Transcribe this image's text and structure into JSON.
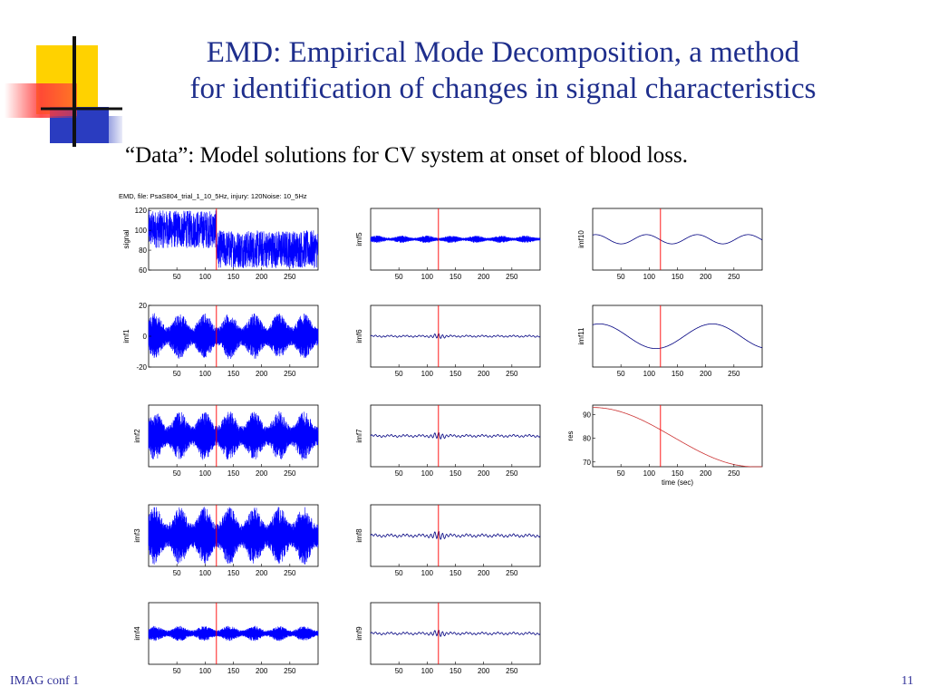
{
  "slide": {
    "title_line1": "EMD: Empirical Mode Decomposition, a method",
    "title_line2": "for identification of changes in signal characteristics",
    "subtitle": "“Data”: Model solutions for CV system at onset of blood loss.",
    "footer_left": "IMAG conf 1",
    "page_number": "11"
  },
  "colors": {
    "title": "#1e2e8c",
    "signal": "#0000ff",
    "marker": "#ff0000",
    "trend": "#cc3333",
    "logo_yellow": "#ffd200",
    "logo_red": "#ff3b3b",
    "logo_blue": "#2a3cc0"
  },
  "chart_data": {
    "type": "line",
    "figure_title": "EMD, file: PsaS804_trial_1_10_5Hz, injury: 120Noise: 10_5Hz",
    "marker_x": 120,
    "x_ticks": [
      50,
      100,
      150,
      200,
      250
    ],
    "x_range": [
      0,
      300
    ],
    "xlabel_bottom": "time (sec)",
    "panels": [
      {
        "name": "signal",
        "col": 0,
        "row": 0,
        "ylabel": "signal",
        "yticks": [
          60,
          80,
          100,
          120
        ],
        "ylim": [
          60,
          122
        ],
        "kind": "dense_step",
        "before_range": [
          82,
          120
        ],
        "after_range": [
          62,
          100
        ]
      },
      {
        "name": "imf1",
        "col": 0,
        "row": 1,
        "ylabel": "imf1",
        "yticks": [
          -20,
          0,
          20
        ],
        "ylim": [
          -20,
          20
        ],
        "kind": "dense",
        "amplitude": 15
      },
      {
        "name": "imf2",
        "col": 0,
        "row": 2,
        "ylabel": "imf2",
        "yticks": [],
        "ylim": [
          -1,
          1
        ],
        "kind": "dense",
        "amplitude": 0.8
      },
      {
        "name": "imf3",
        "col": 0,
        "row": 3,
        "ylabel": "imf3",
        "yticks": [],
        "ylim": [
          -1,
          1
        ],
        "kind": "dense",
        "amplitude": 0.95
      },
      {
        "name": "imf4",
        "col": 0,
        "row": 4,
        "ylabel": "imf4",
        "yticks": [],
        "ylim": [
          -1,
          1
        ],
        "kind": "dense",
        "amplitude": 0.25
      },
      {
        "name": "imf5",
        "col": 1,
        "row": 0,
        "ylabel": "imf5",
        "yticks": [],
        "ylim": [
          -1,
          1
        ],
        "kind": "dense",
        "amplitude": 0.12
      },
      {
        "name": "imf6",
        "col": 1,
        "row": 1,
        "ylabel": "imf6",
        "yticks": [],
        "ylim": [
          -1,
          1
        ],
        "kind": "wavy",
        "amplitude": 0.06
      },
      {
        "name": "imf7",
        "col": 1,
        "row": 2,
        "ylabel": "imf7",
        "yticks": [],
        "ylim": [
          -1,
          1
        ],
        "kind": "wavy",
        "amplitude": 0.08
      },
      {
        "name": "imf8",
        "col": 1,
        "row": 3,
        "ylabel": "imf8",
        "yticks": [],
        "ylim": [
          -1,
          1
        ],
        "kind": "wavy",
        "amplitude": 0.1
      },
      {
        "name": "imf9",
        "col": 1,
        "row": 4,
        "ylabel": "imf9",
        "yticks": [],
        "ylim": [
          -1,
          1
        ],
        "kind": "wavy",
        "amplitude": 0.08
      },
      {
        "name": "imf10",
        "col": 2,
        "row": 0,
        "ylabel": "imf10",
        "yticks": [],
        "ylim": [
          -1,
          1
        ],
        "kind": "smooth",
        "amplitude": 0.15,
        "period": 90
      },
      {
        "name": "imf11",
        "col": 2,
        "row": 1,
        "ylabel": "imf11",
        "yticks": [],
        "ylim": [
          -1,
          1
        ],
        "kind": "smooth",
        "amplitude": 0.4,
        "period": 200
      },
      {
        "name": "res",
        "col": 2,
        "row": 2,
        "ylabel": "res",
        "yticks": [
          70,
          80,
          90
        ],
        "ylim": [
          68,
          94
        ],
        "kind": "trend",
        "start": 93,
        "end": 68
      }
    ]
  }
}
